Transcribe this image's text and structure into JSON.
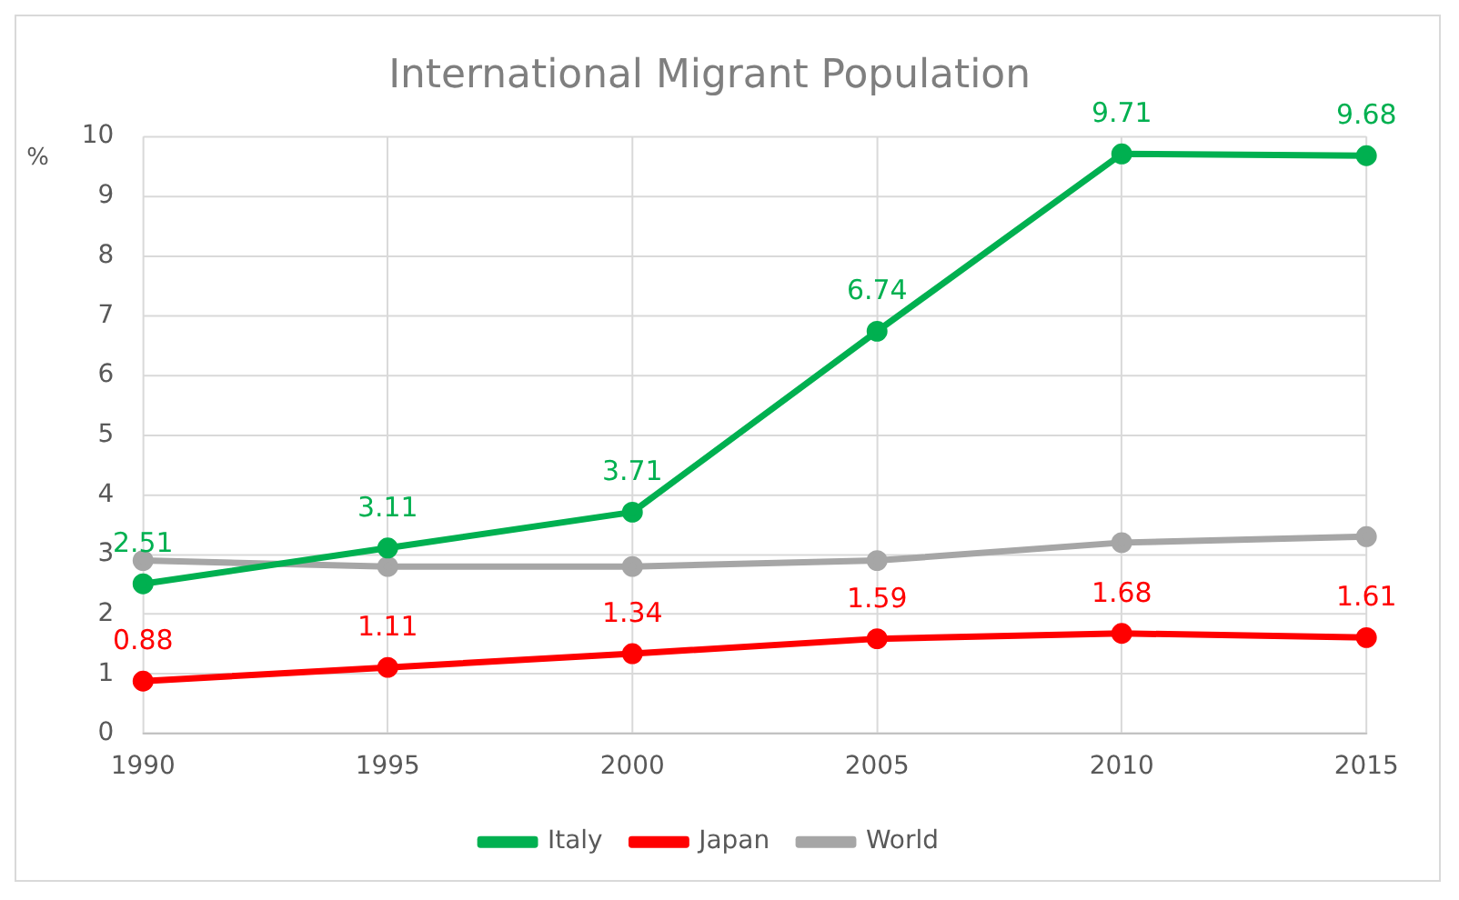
{
  "chart_data": {
    "type": "line",
    "title": "International Migrant Population",
    "ylabel": "%",
    "categories": [
      "1990",
      "1995",
      "2000",
      "2005",
      "2010",
      "2015"
    ],
    "series": [
      {
        "name": "Italy",
        "color": "#00b050",
        "values": [
          2.51,
          3.11,
          3.71,
          6.74,
          9.71,
          9.68
        ],
        "value_labels": [
          "2.51",
          "3.11",
          "3.71",
          "6.74",
          "9.71",
          "9.68"
        ]
      },
      {
        "name": "Japan",
        "color": "#ff0000",
        "values": [
          0.88,
          1.11,
          1.34,
          1.59,
          1.68,
          1.61
        ],
        "value_labels": [
          "0.88",
          "1.11",
          "1.34",
          "1.59",
          "1.68",
          "1.61"
        ]
      },
      {
        "name": "World",
        "color": "#a6a6a6",
        "values": [
          2.9,
          2.8,
          2.8,
          2.9,
          3.2,
          3.3
        ]
      }
    ],
    "ylim": [
      0,
      10
    ],
    "yticks": [
      0,
      1,
      2,
      3,
      4,
      5,
      6,
      7,
      8,
      9,
      10
    ],
    "grid": true,
    "legend": "bottom",
    "marker": "circle",
    "line_style": "solid"
  }
}
